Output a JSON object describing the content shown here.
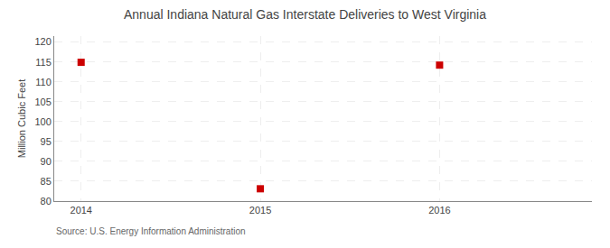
{
  "chart_data": {
    "type": "scatter",
    "title": "Annual Indiana Natural Gas Interstate Deliveries to West Virginia",
    "ylabel": "Million Cubic Feet",
    "source": "Source: U.S. Energy Information Administration",
    "x": [
      2014,
      2015,
      2016
    ],
    "values": [
      114.9,
      83.1,
      114.2
    ],
    "xlim": [
      2013.85,
      2016.85
    ],
    "ylim": [
      80,
      121.5
    ],
    "xticks": [
      2014,
      2015,
      2016
    ],
    "yticks": [
      80,
      85,
      90,
      95,
      100,
      105,
      110,
      115,
      120
    ],
    "color": "#cc0000",
    "marker": "square",
    "grid": true
  }
}
